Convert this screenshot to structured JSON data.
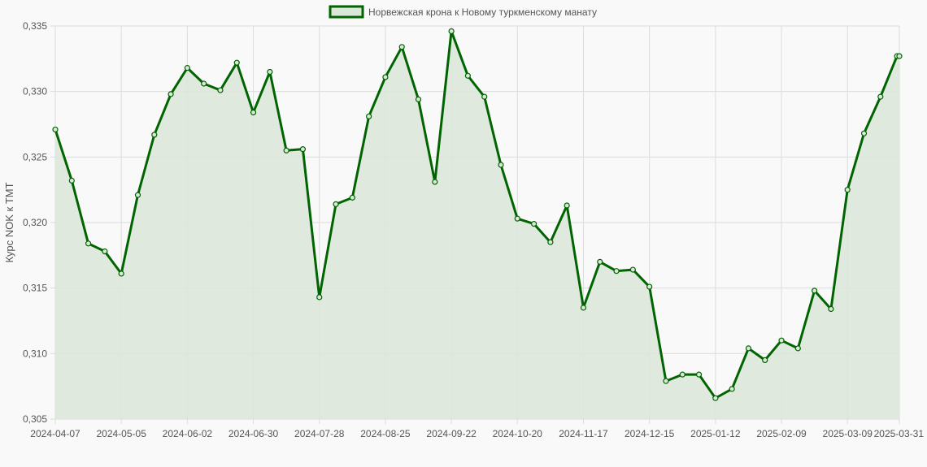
{
  "colors": {
    "line": "#006400",
    "fill": "#dbe7d9",
    "grid": "#dcdcdc",
    "background": "#f9f9f9",
    "text": "#555555"
  },
  "chart_data": {
    "type": "line",
    "ylabel": "Курс NOK к TMT",
    "ylim": [
      0.305,
      0.335
    ],
    "y_ticks": [
      "0,305",
      "0,310",
      "0,315",
      "0,320",
      "0,325",
      "0,330",
      "0,335"
    ],
    "x_ticks": [
      "2024-04-07",
      "2024-05-05",
      "2024-06-02",
      "2024-06-30",
      "2024-07-28",
      "2024-08-25",
      "2024-09-22",
      "2024-10-20",
      "2024-11-17",
      "2024-12-15",
      "2025-01-12",
      "2025-02-09",
      "2025-03-09",
      "2025-03-31"
    ],
    "grid": true,
    "legend_position": "top-center",
    "series": [
      {
        "name": "Норвежская крона к Новому туркменскому манату",
        "x": [
          "2024-04-07",
          "2024-04-14",
          "2024-04-21",
          "2024-04-28",
          "2024-05-05",
          "2024-05-12",
          "2024-05-19",
          "2024-05-26",
          "2024-06-02",
          "2024-06-09",
          "2024-06-16",
          "2024-06-23",
          "2024-06-30",
          "2024-07-07",
          "2024-07-14",
          "2024-07-21",
          "2024-07-28",
          "2024-08-04",
          "2024-08-11",
          "2024-08-18",
          "2024-08-25",
          "2024-09-01",
          "2024-09-08",
          "2024-09-15",
          "2024-09-22",
          "2024-09-29",
          "2024-10-06",
          "2024-10-13",
          "2024-10-20",
          "2024-10-27",
          "2024-11-03",
          "2024-11-10",
          "2024-11-17",
          "2024-11-24",
          "2024-12-01",
          "2024-12-08",
          "2024-12-15",
          "2024-12-22",
          "2024-12-29",
          "2025-01-05",
          "2025-01-12",
          "2025-01-19",
          "2025-01-26",
          "2025-02-02",
          "2025-02-09",
          "2025-02-16",
          "2025-02-23",
          "2025-03-02",
          "2025-03-09",
          "2025-03-16",
          "2025-03-23",
          "2025-03-30",
          "2025-03-31"
        ],
        "values": [
          0.3271,
          0.3232,
          0.3184,
          0.3178,
          0.3161,
          0.3221,
          0.3267,
          0.3298,
          0.3318,
          0.3306,
          0.3301,
          0.3322,
          0.3284,
          0.3315,
          0.3255,
          0.3256,
          0.3143,
          0.3214,
          0.3219,
          0.3281,
          0.3311,
          0.3334,
          0.3294,
          0.3231,
          0.3346,
          0.3312,
          0.3296,
          0.3244,
          0.3203,
          0.3199,
          0.3185,
          0.3213,
          0.3135,
          0.317,
          0.3163,
          0.3164,
          0.3151,
          0.3079,
          0.3084,
          0.3084,
          0.3066,
          0.3073,
          0.3104,
          0.3095,
          0.311,
          0.3104,
          0.3148,
          0.3134,
          0.3225,
          0.3268,
          0.3296,
          0.3327,
          0.3327
        ]
      }
    ]
  }
}
